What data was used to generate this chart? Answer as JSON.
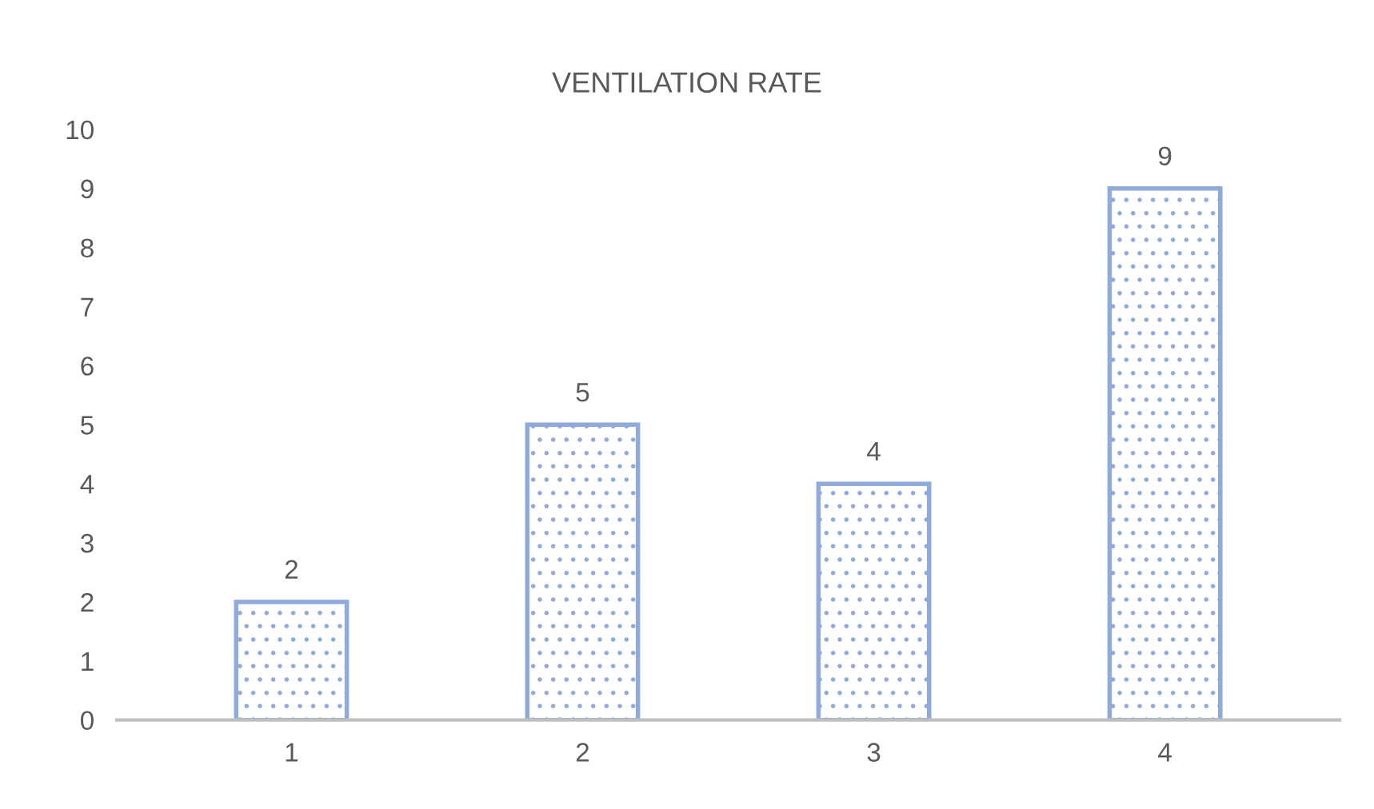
{
  "chart_data": {
    "type": "bar",
    "title": "VENTILATION RATE",
    "categories": [
      "1",
      "2",
      "3",
      "4"
    ],
    "values": [
      2,
      5,
      4,
      9
    ],
    "color": "#8faadc",
    "ylim": [
      0,
      10
    ],
    "yticks": [
      0,
      1,
      2,
      3,
      4,
      5,
      6,
      7,
      8,
      9,
      10
    ],
    "data_labels": true,
    "grid": false,
    "legend": false
  }
}
